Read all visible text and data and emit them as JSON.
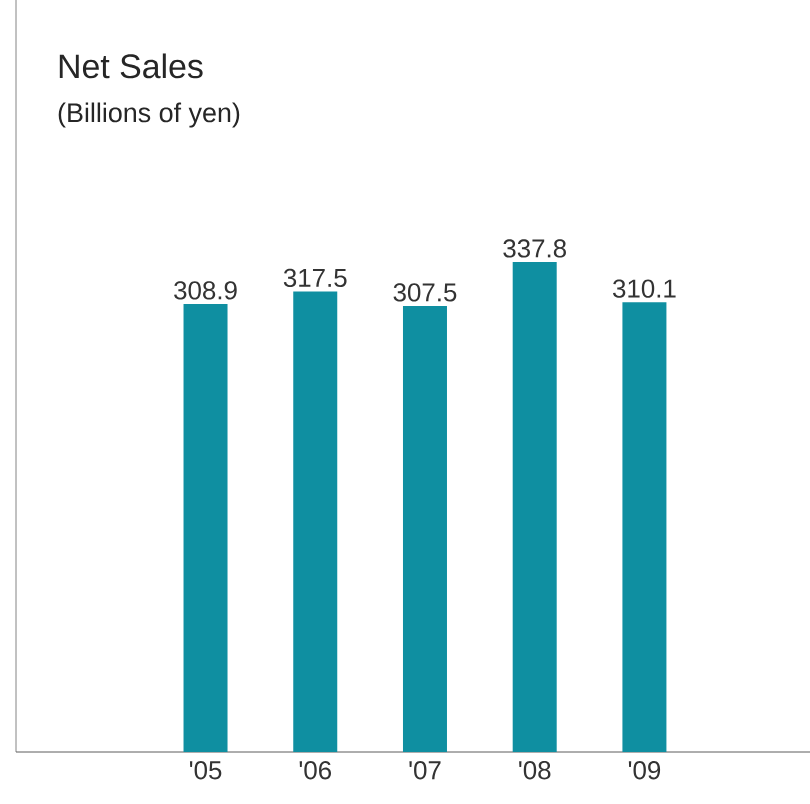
{
  "chart_data": {
    "type": "bar",
    "title": "Net Sales",
    "subtitle": "(Billions of yen)",
    "categories": [
      "'05",
      "'06",
      "'07",
      "'08",
      "'09"
    ],
    "values": [
      308.9,
      317.5,
      307.5,
      337.8,
      310.1
    ],
    "color": "#0f8fa1",
    "data_labels": true
  }
}
